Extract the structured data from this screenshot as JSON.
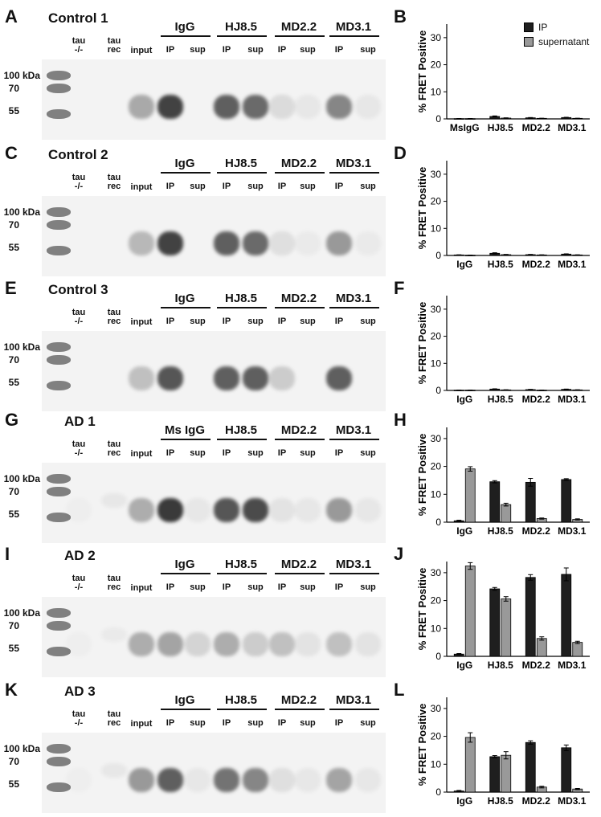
{
  "legend": [
    {
      "label": "IP",
      "color": "#1f1f1f"
    },
    {
      "label": "supernatant",
      "color": "#999999"
    }
  ],
  "colors": {
    "ip": "#1f1f1f",
    "supernatant": "#999999",
    "blot_background": "#f3f3f3"
  },
  "lane_labels": {
    "tau_ko": "tau\n-/-",
    "tau_rec": "tau\nrec",
    "input": "input",
    "ip": "IP",
    "sup": "sup"
  },
  "mw_markers": [
    "100 kDa",
    "70",
    "55"
  ],
  "y_axis_label": "% FRET Positive",
  "panels": [
    {
      "blot_letter": "A",
      "chart_letter": "B",
      "sample": "Control 1",
      "antibodies": [
        "IgG",
        "HJ8.5",
        "MD2.2",
        "MD3.1"
      ],
      "bands": [
        0,
        0,
        0.38,
        0.9,
        0,
        0.75,
        0.7,
        0.12,
        0.05,
        0.55,
        0.05,
        0.55
      ],
      "chart_data": {
        "type": "bar",
        "categories": [
          "MsIgG",
          "HJ8.5",
          "MD2.2",
          "MD3.1"
        ],
        "series": [
          {
            "name": "IP",
            "values": [
              0.1,
              0.9,
              0.4,
              0.5
            ],
            "errors": [
              0.05,
              0.2,
              0.1,
              0.1
            ]
          },
          {
            "name": "supernatant",
            "values": [
              0.1,
              0.3,
              0.2,
              0.2
            ],
            "errors": [
              0.05,
              0.1,
              0.05,
              0.05
            ]
          }
        ],
        "ylabel": "% FRET Positive",
        "ylim": [
          0,
          35
        ],
        "yticks": [
          0,
          10,
          20,
          30
        ]
      }
    },
    {
      "blot_letter": "C",
      "chart_letter": "D",
      "sample": "Control 2",
      "antibodies": [
        "IgG",
        "HJ8.5",
        "MD2.2",
        "MD3.1"
      ],
      "bands": [
        0,
        0,
        0.3,
        0.9,
        0,
        0.75,
        0.7,
        0.1,
        0.04,
        0.45,
        0.04,
        0.5
      ],
      "chart_data": {
        "type": "bar",
        "categories": [
          "IgG",
          "HJ8.5",
          "MD2.2",
          "MD3.1"
        ],
        "series": [
          {
            "name": "IP",
            "values": [
              0.2,
              0.8,
              0.3,
              0.5
            ],
            "errors": [
              0.05,
              0.2,
              0.1,
              0.1
            ]
          },
          {
            "name": "supernatant",
            "values": [
              0.1,
              0.3,
              0.2,
              0.2
            ],
            "errors": [
              0.05,
              0.1,
              0.05,
              0.05
            ]
          }
        ],
        "ylabel": "% FRET Positive",
        "ylim": [
          0,
          35
        ],
        "yticks": [
          0,
          10,
          20,
          30
        ]
      }
    },
    {
      "blot_letter": "E",
      "chart_letter": "F",
      "sample": "Control 3",
      "antibodies": [
        "IgG",
        "HJ8.5",
        "MD2.2",
        "MD3.1"
      ],
      "bands": [
        0,
        0,
        0.25,
        0.8,
        0,
        0.75,
        0.75,
        0.2,
        0,
        0.75,
        0,
        0.75
      ],
      "chart_data": {
        "type": "bar",
        "categories": [
          "IgG",
          "HJ8.5",
          "MD2.2",
          "MD3.1"
        ],
        "series": [
          {
            "name": "IP",
            "values": [
              0.1,
              0.5,
              0.3,
              0.4
            ],
            "errors": [
              0.05,
              0.1,
              0.1,
              0.1
            ]
          },
          {
            "name": "supernatant",
            "values": [
              0.1,
              0.2,
              0.1,
              0.2
            ],
            "errors": [
              0.05,
              0.05,
              0.05,
              0.05
            ]
          }
        ],
        "ylabel": "% FRET Positive",
        "ylim": [
          0,
          35
        ],
        "yticks": [
          0,
          10,
          20,
          30
        ]
      }
    },
    {
      "blot_letter": "G",
      "chart_letter": "H",
      "sample": "AD 1",
      "antibodies": [
        "Ms IgG",
        "HJ8.5",
        "MD2.2",
        "MD3.1"
      ],
      "bands": [
        0.02,
        0.05,
        0.35,
        0.95,
        0.05,
        0.8,
        0.85,
        0.08,
        0.05,
        0.45,
        0.05,
        0.4
      ],
      "chart_data": {
        "type": "bar",
        "categories": [
          "IgG",
          "HJ8.5",
          "MD2.2",
          "MD3.1"
        ],
        "series": [
          {
            "name": "IP",
            "values": [
              0.5,
              14.5,
              14.3,
              15.3
            ],
            "errors": [
              0.2,
              0.4,
              1.4,
              0.3
            ]
          },
          {
            "name": "supernatant",
            "values": [
              19.1,
              6.3,
              1.3,
              1.0
            ],
            "errors": [
              0.8,
              0.5,
              0.2,
              0.2
            ]
          }
        ],
        "ylabel": "% FRET Positive",
        "ylim": [
          0,
          34
        ],
        "yticks": [
          0,
          10,
          20,
          30
        ]
      }
    },
    {
      "blot_letter": "I",
      "chart_letter": "J",
      "sample": "AD 2",
      "antibodies": [
        "IgG",
        "HJ8.5",
        "MD2.2",
        "MD3.1"
      ],
      "bands": [
        0.02,
        0.04,
        0.35,
        0.4,
        0.15,
        0.35,
        0.2,
        0.25,
        0.08,
        0.25,
        0.08,
        0.25
      ],
      "chart_data": {
        "type": "bar",
        "categories": [
          "IgG",
          "HJ8.5",
          "MD2.2",
          "MD3.1"
        ],
        "series": [
          {
            "name": "IP",
            "values": [
              0.8,
              24.2,
              28.3,
              29.4
            ],
            "errors": [
              0.2,
              0.5,
              1.0,
              2.3
            ]
          },
          {
            "name": "supernatant",
            "values": [
              32.4,
              20.6,
              6.4,
              5.0
            ],
            "errors": [
              1.2,
              0.8,
              0.6,
              0.4
            ]
          }
        ],
        "ylabel": "% FRET Positive",
        "ylim": [
          0,
          34
        ],
        "yticks": [
          0,
          10,
          20,
          30
        ]
      }
    },
    {
      "blot_letter": "K",
      "chart_letter": "L",
      "sample": "AD 3",
      "antibodies": [
        "IgG",
        "HJ8.5",
        "MD2.2",
        "MD3.1"
      ],
      "bands": [
        0.02,
        0.05,
        0.45,
        0.75,
        0.05,
        0.65,
        0.55,
        0.1,
        0.05,
        0.4,
        0.05,
        0.3
      ],
      "chart_data": {
        "type": "bar",
        "categories": [
          "IgG",
          "HJ8.5",
          "MD2.2",
          "MD3.1"
        ],
        "series": [
          {
            "name": "IP",
            "values": [
              0.4,
              12.7,
              17.8,
              15.9
            ],
            "errors": [
              0.2,
              0.4,
              0.6,
              1.0
            ]
          },
          {
            "name": "supernatant",
            "values": [
              19.6,
              13.2,
              1.8,
              1.1
            ],
            "errors": [
              1.7,
              1.3,
              0.3,
              0.2
            ]
          }
        ],
        "ylabel": "% FRET Positive",
        "ylim": [
          0,
          34
        ],
        "yticks": [
          0,
          10,
          20,
          30
        ]
      }
    }
  ]
}
